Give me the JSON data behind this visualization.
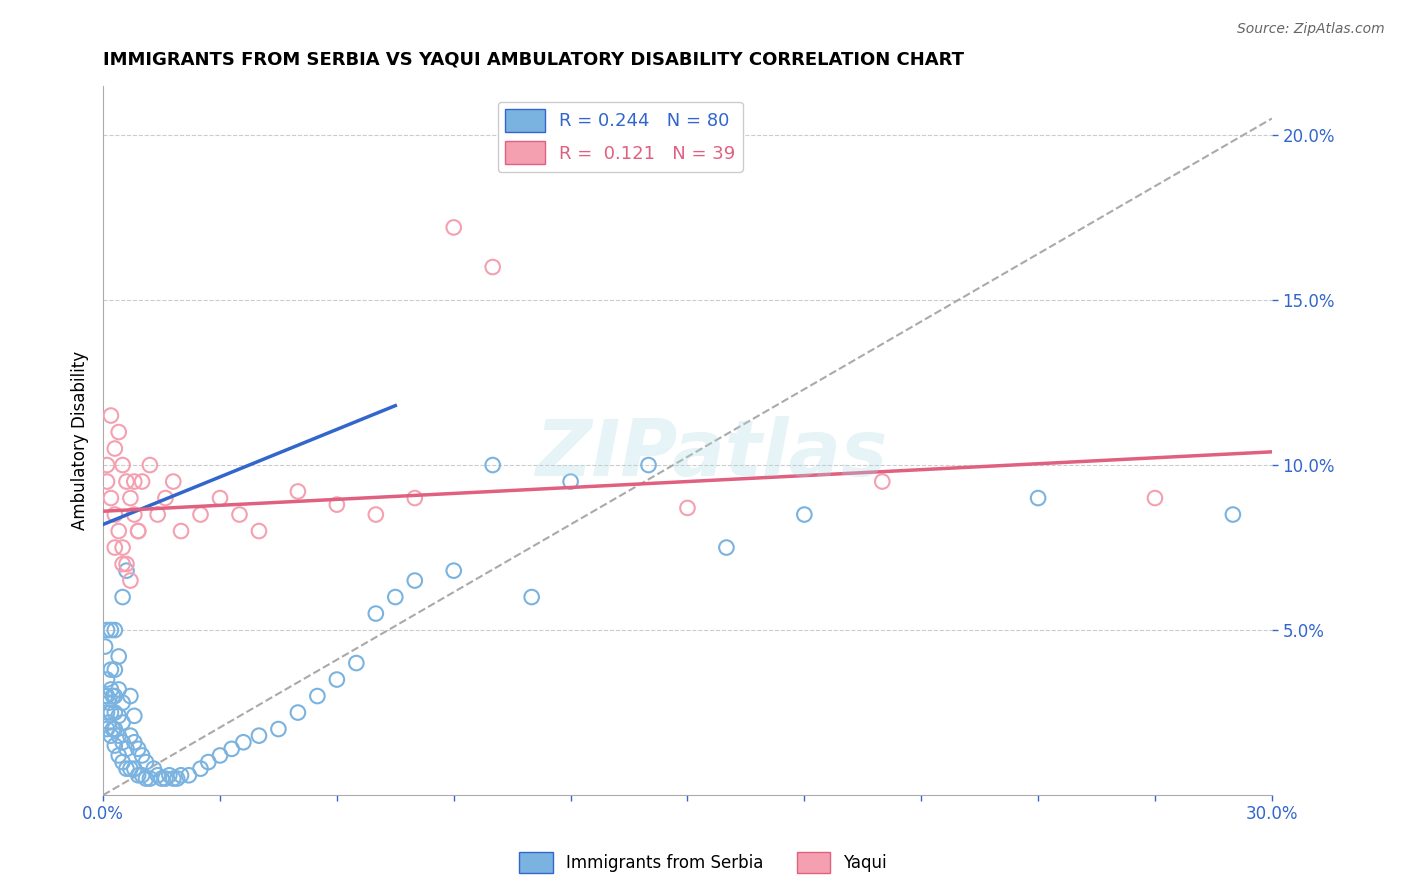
{
  "title": "IMMIGRANTS FROM SERBIA VS YAQUI AMBULATORY DISABILITY CORRELATION CHART",
  "source_text": "Source: ZipAtlas.com",
  "xlabel": "",
  "ylabel": "Ambulatory Disability",
  "xlim": [
    0.0,
    0.3
  ],
  "ylim": [
    0.0,
    0.215
  ],
  "xticks": [
    0.0,
    0.03,
    0.06,
    0.09,
    0.12,
    0.15,
    0.18,
    0.21,
    0.24,
    0.27,
    0.3
  ],
  "ytick_positions": [
    0.05,
    0.1,
    0.15,
    0.2
  ],
  "ytick_labels": [
    "5.0%",
    "10.0%",
    "15.0%",
    "20.0%"
  ],
  "grid_color": "#cccccc",
  "background_color": "#ffffff",
  "blue_color": "#7ab3e0",
  "pink_color": "#f4a0b0",
  "blue_line_color": "#3366cc",
  "pink_line_color": "#e06080",
  "dashed_line_color": "#aaaaaa",
  "R_blue": 0.244,
  "N_blue": 80,
  "R_pink": 0.121,
  "N_pink": 39,
  "legend_label_blue": "Immigrants from Serbia",
  "legend_label_pink": "Yaqui",
  "watermark": "ZIPatlas",
  "blue_scatter_x": [
    0.0005,
    0.0005,
    0.001,
    0.001,
    0.001,
    0.001,
    0.001,
    0.0015,
    0.0015,
    0.002,
    0.002,
    0.002,
    0.002,
    0.002,
    0.0025,
    0.0025,
    0.003,
    0.003,
    0.003,
    0.003,
    0.003,
    0.003,
    0.004,
    0.004,
    0.004,
    0.004,
    0.004,
    0.005,
    0.005,
    0.005,
    0.005,
    0.005,
    0.006,
    0.006,
    0.006,
    0.007,
    0.007,
    0.007,
    0.008,
    0.008,
    0.008,
    0.009,
    0.009,
    0.01,
    0.01,
    0.011,
    0.011,
    0.012,
    0.013,
    0.014,
    0.015,
    0.016,
    0.017,
    0.018,
    0.019,
    0.02,
    0.022,
    0.025,
    0.027,
    0.03,
    0.033,
    0.036,
    0.04,
    0.045,
    0.05,
    0.055,
    0.06,
    0.065,
    0.07,
    0.075,
    0.08,
    0.09,
    0.1,
    0.11,
    0.12,
    0.14,
    0.16,
    0.18,
    0.24,
    0.29
  ],
  "blue_scatter_y": [
    0.045,
    0.03,
    0.02,
    0.025,
    0.03,
    0.035,
    0.05,
    0.022,
    0.028,
    0.018,
    0.025,
    0.032,
    0.038,
    0.05,
    0.02,
    0.03,
    0.015,
    0.02,
    0.025,
    0.03,
    0.038,
    0.05,
    0.012,
    0.018,
    0.024,
    0.032,
    0.042,
    0.01,
    0.016,
    0.022,
    0.028,
    0.06,
    0.008,
    0.014,
    0.068,
    0.008,
    0.018,
    0.03,
    0.008,
    0.016,
    0.024,
    0.006,
    0.014,
    0.006,
    0.012,
    0.005,
    0.01,
    0.005,
    0.008,
    0.006,
    0.005,
    0.005,
    0.006,
    0.005,
    0.005,
    0.006,
    0.006,
    0.008,
    0.01,
    0.012,
    0.014,
    0.016,
    0.018,
    0.02,
    0.025,
    0.03,
    0.035,
    0.04,
    0.055,
    0.06,
    0.065,
    0.068,
    0.1,
    0.06,
    0.095,
    0.1,
    0.075,
    0.085,
    0.09,
    0.085
  ],
  "pink_scatter_x": [
    0.001,
    0.001,
    0.002,
    0.002,
    0.003,
    0.003,
    0.004,
    0.004,
    0.005,
    0.005,
    0.006,
    0.006,
    0.007,
    0.008,
    0.008,
    0.009,
    0.01,
    0.012,
    0.014,
    0.016,
    0.018,
    0.02,
    0.025,
    0.03,
    0.035,
    0.04,
    0.05,
    0.06,
    0.07,
    0.08,
    0.09,
    0.1,
    0.15,
    0.2,
    0.27,
    0.003,
    0.005,
    0.007,
    0.009
  ],
  "pink_scatter_y": [
    0.1,
    0.095,
    0.115,
    0.09,
    0.105,
    0.085,
    0.11,
    0.08,
    0.1,
    0.075,
    0.095,
    0.07,
    0.09,
    0.095,
    0.085,
    0.08,
    0.095,
    0.1,
    0.085,
    0.09,
    0.095,
    0.08,
    0.085,
    0.09,
    0.085,
    0.08,
    0.092,
    0.088,
    0.085,
    0.09,
    0.172,
    0.16,
    0.087,
    0.095,
    0.09,
    0.075,
    0.07,
    0.065,
    0.08
  ],
  "blue_trend_x": [
    0.0,
    0.075
  ],
  "blue_trend_y": [
    0.082,
    0.118
  ],
  "pink_trend_x": [
    0.0,
    0.3
  ],
  "pink_trend_y": [
    0.086,
    0.104
  ],
  "dashed_trend_x": [
    0.0,
    0.3
  ],
  "dashed_trend_y": [
    0.0,
    0.205
  ]
}
